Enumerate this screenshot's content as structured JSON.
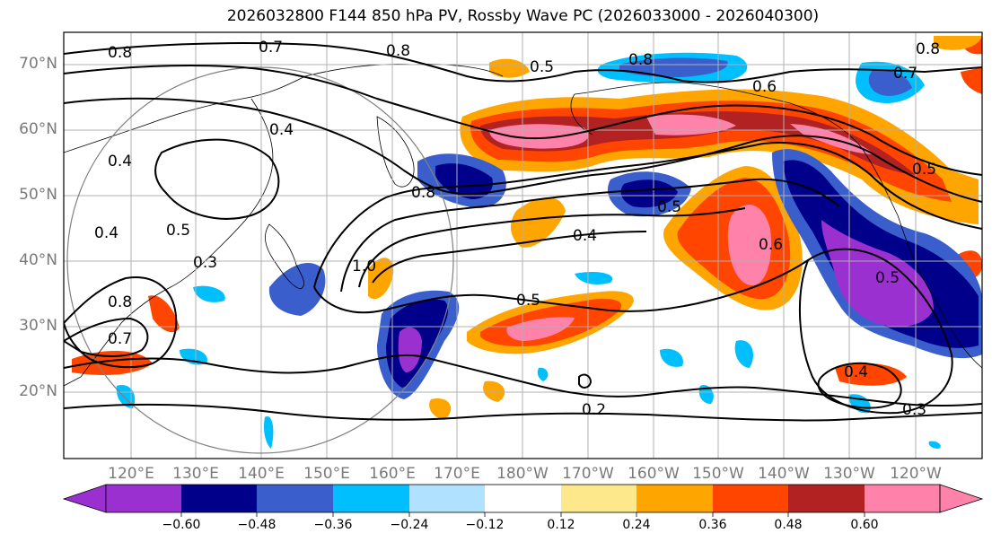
{
  "title": "2026032800 F144 850 hPa PV, Rossby Wave PC (2026033000 - 2026040300)",
  "map": {
    "lat_labels": [
      "70°N",
      "60°N",
      "50°N",
      "40°N",
      "30°N",
      "20°N"
    ],
    "lon_labels": [
      "120°E",
      "130°E",
      "140°E",
      "150°E",
      "160°E",
      "170°E",
      "180°W",
      "170°W",
      "160°W",
      "150°W",
      "140°W",
      "130°W",
      "120°W"
    ],
    "contour_labels": [
      "0.8",
      "0.7",
      "0.8",
      "0.5",
      "0.8",
      "0.6",
      "0.7",
      "0.8",
      "0.4",
      "0.4",
      "0.8",
      "0.5",
      "0.4",
      "0.6",
      "0.5",
      "0.3",
      "1.0",
      "0.5",
      "0.8",
      "0.5",
      "0.7",
      "0.4",
      "0.2",
      "0.4",
      "0.3",
      "0.5"
    ]
  },
  "colorbar": {
    "tick_labels": [
      "−0.60",
      "−0.48",
      "−0.36",
      "−0.24",
      "−0.12",
      "0.12",
      "0.24",
      "0.36",
      "0.48",
      "0.60"
    ],
    "colors": [
      "#9b30d0",
      "#00008b",
      "#3a5fcd",
      "#00bfff",
      "#b0e2ff",
      "#ffffff",
      "#fde98b",
      "#ffa500",
      "#ff4500",
      "#b22222",
      "#ff82ab"
    ]
  }
}
